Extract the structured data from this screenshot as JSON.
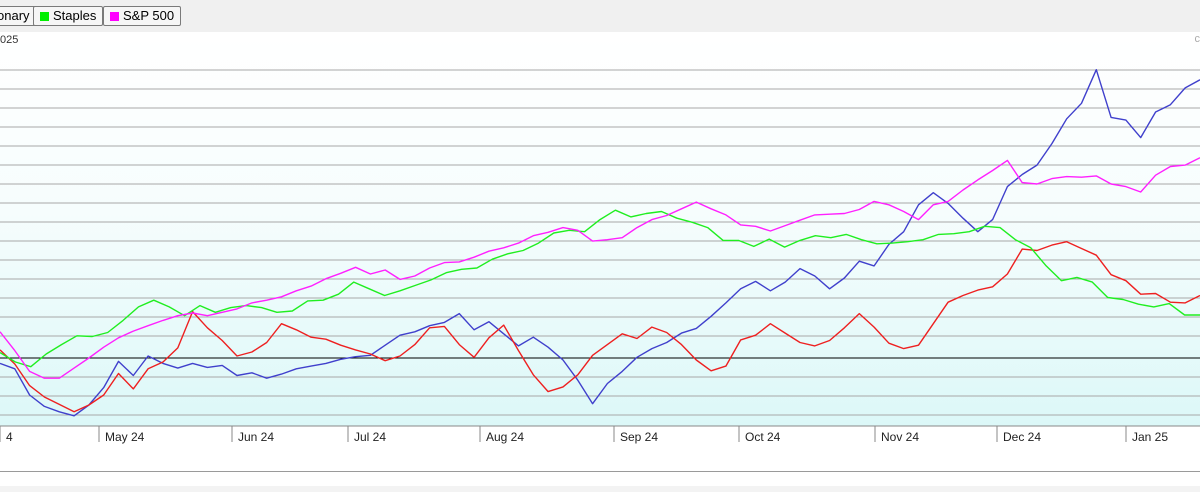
{
  "legend": [
    {
      "label": "onary",
      "color": "#ff0000"
    },
    {
      "label": "Staples",
      "color": "#00ee00"
    },
    {
      "label": "S&P 500",
      "color": "#ff00ff"
    }
  ],
  "title_fragment": "025",
  "corner_icon": "c",
  "chart_data": {
    "type": "line",
    "x_tick_labels": [
      "4",
      "May 24",
      "Jun 24",
      "Jul 24",
      "Aug 24",
      "Sep 24",
      "Oct 24",
      "Nov 24",
      "Dec 24",
      "Jan 25"
    ],
    "baseline": 0,
    "grid": true,
    "series": [
      {
        "color": "#4040cc",
        "values": [
          -0.8,
          -1.6,
          -5.5,
          -7.2,
          -8.0,
          -8.6,
          -7.0,
          -4.4,
          -0.5,
          -2.6,
          0.3,
          -0.8,
          -1.5,
          -0.8,
          -1.4,
          -1.1,
          -2.6,
          -2.2,
          -3.0,
          -2.4,
          -1.6,
          -1.2,
          -0.8,
          -0.2,
          0.2,
          0.4,
          1.9,
          3.4,
          3.9,
          4.8,
          5.3,
          6.6,
          4.2,
          5.4,
          3.6,
          1.8,
          3.1,
          1.6,
          -0.3,
          -3.3,
          -6.8,
          -3.8,
          -2.0,
          0.1,
          1.4,
          2.3,
          3.7,
          4.4,
          6.2,
          8.2,
          10.3,
          11.4,
          10.0,
          11.3,
          13.3,
          12.2,
          10.3,
          11.9,
          14.4,
          13.7,
          16.9,
          18.8,
          22.8,
          24.6,
          23.0,
          20.8,
          18.8,
          20.6,
          25.5,
          27.3,
          28.7,
          31.9,
          35.6,
          37.9,
          42.9,
          35.8,
          35.4,
          32.8,
          36.6,
          37.7,
          40.2,
          41.4
        ]
      },
      {
        "color": "#ee2020",
        "values": [
          1.2,
          -0.9,
          -4.1,
          -5.8,
          -6.9,
          -8.0,
          -7.0,
          -5.5,
          -2.3,
          -4.6,
          -1.6,
          -0.6,
          1.5,
          6.9,
          4.5,
          2.6,
          0.3,
          0.9,
          2.3,
          5.1,
          4.2,
          3.1,
          2.8,
          1.9,
          1.2,
          0.6,
          -0.4,
          0.3,
          2.0,
          4.5,
          4.7,
          2.0,
          0.1,
          3.0,
          4.9,
          1.1,
          -2.5,
          -5.0,
          -4.3,
          -2.5,
          0.4,
          2.0,
          3.6,
          2.9,
          4.6,
          3.8,
          2.0,
          -0.3,
          -1.9,
          -1.2,
          2.7,
          3.4,
          5.1,
          3.7,
          2.3,
          1.8,
          2.6,
          4.5,
          6.6,
          4.6,
          2.2,
          1.4,
          1.9,
          5.1,
          8.3,
          9.3,
          10.1,
          10.6,
          12.5,
          16.2,
          16.0,
          16.8,
          17.3,
          16.3,
          15.3,
          12.4,
          11.5,
          9.5,
          9.6,
          8.3,
          8.2,
          9.3
        ]
      },
      {
        "color": "#20ee20",
        "values": [
          0.8,
          -0.6,
          -1.3,
          0.6,
          2.0,
          3.3,
          3.2,
          3.8,
          5.6,
          7.6,
          8.6,
          7.6,
          6.3,
          7.8,
          6.8,
          7.5,
          7.8,
          7.5,
          6.8,
          7.0,
          8.5,
          8.6,
          9.5,
          11.3,
          10.3,
          9.3,
          10.0,
          10.8,
          11.6,
          12.7,
          13.2,
          13.4,
          14.7,
          15.5,
          16.0,
          17.1,
          18.6,
          19.0,
          18.8,
          20.6,
          22.0,
          21.0,
          21.5,
          21.8,
          20.8,
          20.2,
          19.4,
          17.5,
          17.5,
          16.6,
          17.7,
          16.5,
          17.5,
          18.2,
          17.9,
          18.4,
          17.6,
          17.0,
          17.1,
          17.3,
          17.6,
          18.4,
          18.5,
          18.8,
          19.6,
          19.4,
          17.6,
          16.4,
          13.7,
          11.5,
          12.0,
          11.3,
          9.0,
          8.7,
          8.0,
          7.6,
          8.1,
          6.4,
          6.4
        ]
      },
      {
        "color": "#ff20ff",
        "values": [
          3.9,
          1.1,
          -2.0,
          -3.0,
          -3.0,
          -1.5,
          0.0,
          1.6,
          3.0,
          4.0,
          4.8,
          5.6,
          6.3,
          6.7,
          6.3,
          6.8,
          7.3,
          8.2,
          8.6,
          9.1,
          10.0,
          10.7,
          11.8,
          12.6,
          13.5,
          12.5,
          13.1,
          11.7,
          12.2,
          13.4,
          14.2,
          14.3,
          15.0,
          15.9,
          16.4,
          17.1,
          18.2,
          18.7,
          19.4,
          19.0,
          17.4,
          17.6,
          17.9,
          19.4,
          20.6,
          21.2,
          22.2,
          23.2,
          22.2,
          21.3,
          19.8,
          19.6,
          18.9,
          19.7,
          20.5,
          21.3,
          21.4,
          21.5,
          22.1,
          23.3,
          22.8,
          21.8,
          20.6,
          22.8,
          23.3,
          25.0,
          26.5,
          27.9,
          29.4,
          26.1,
          25.9,
          26.7,
          27.0,
          26.9,
          27.1,
          25.9,
          25.5,
          24.7,
          27.2,
          28.5,
          28.7,
          29.8
        ]
      }
    ]
  }
}
